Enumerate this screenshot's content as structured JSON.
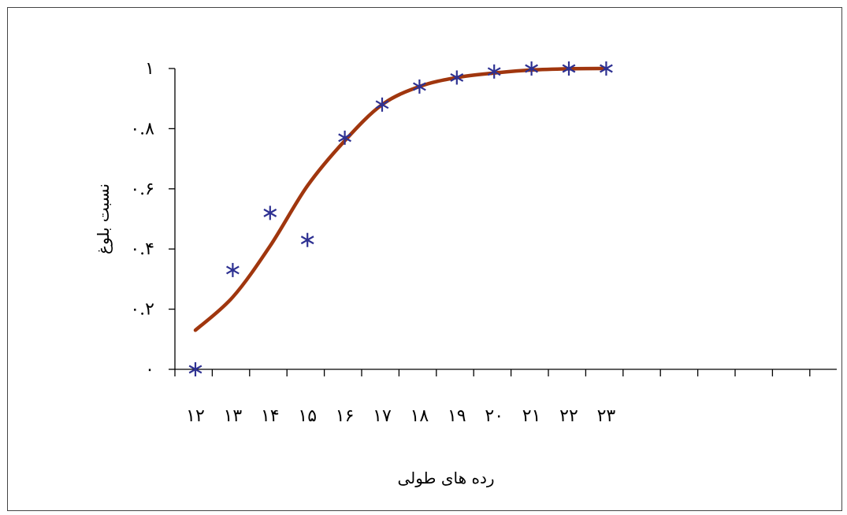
{
  "colors": {
    "fit_line": "#A0360E",
    "marker": "#2E3192",
    "axis": "#000000",
    "frame_border": "#444444"
  },
  "chart_data": {
    "type": "line",
    "title": "",
    "xlabel": "رده های طولی",
    "ylabel": "نسبت بلوغ",
    "categories": [
      "۱۲",
      "۱۳",
      "۱۴",
      "۱۵",
      "۱۶",
      "۱۷",
      "۱۸",
      "۱۹",
      "۲۰",
      "۲۱",
      "۲۲",
      "۲۳"
    ],
    "y_ticks": [
      {
        "value": 0,
        "label": "۰"
      },
      {
        "value": 0.2,
        "label": "۰.۲"
      },
      {
        "value": 0.4,
        "label": "۰.۴"
      },
      {
        "value": 0.6,
        "label": "۰.۶"
      },
      {
        "value": 0.8,
        "label": "۰.۸"
      },
      {
        "value": 1,
        "label": "۱"
      }
    ],
    "ylim": [
      0,
      1
    ],
    "x_slots": 18,
    "grid": false,
    "legend": "none",
    "series": [
      {
        "kind": "markers",
        "marker": "asterisk",
        "values": [
          0.0,
          0.33,
          0.52,
          0.43,
          0.77,
          0.88,
          0.94,
          0.97,
          0.99,
          1.0,
          1.0,
          1.0
        ]
      },
      {
        "kind": "line",
        "values": [
          0.13,
          0.24,
          0.41,
          0.61,
          0.76,
          0.88,
          0.94,
          0.97,
          0.985,
          0.995,
          0.999,
          1.0
        ]
      }
    ]
  }
}
